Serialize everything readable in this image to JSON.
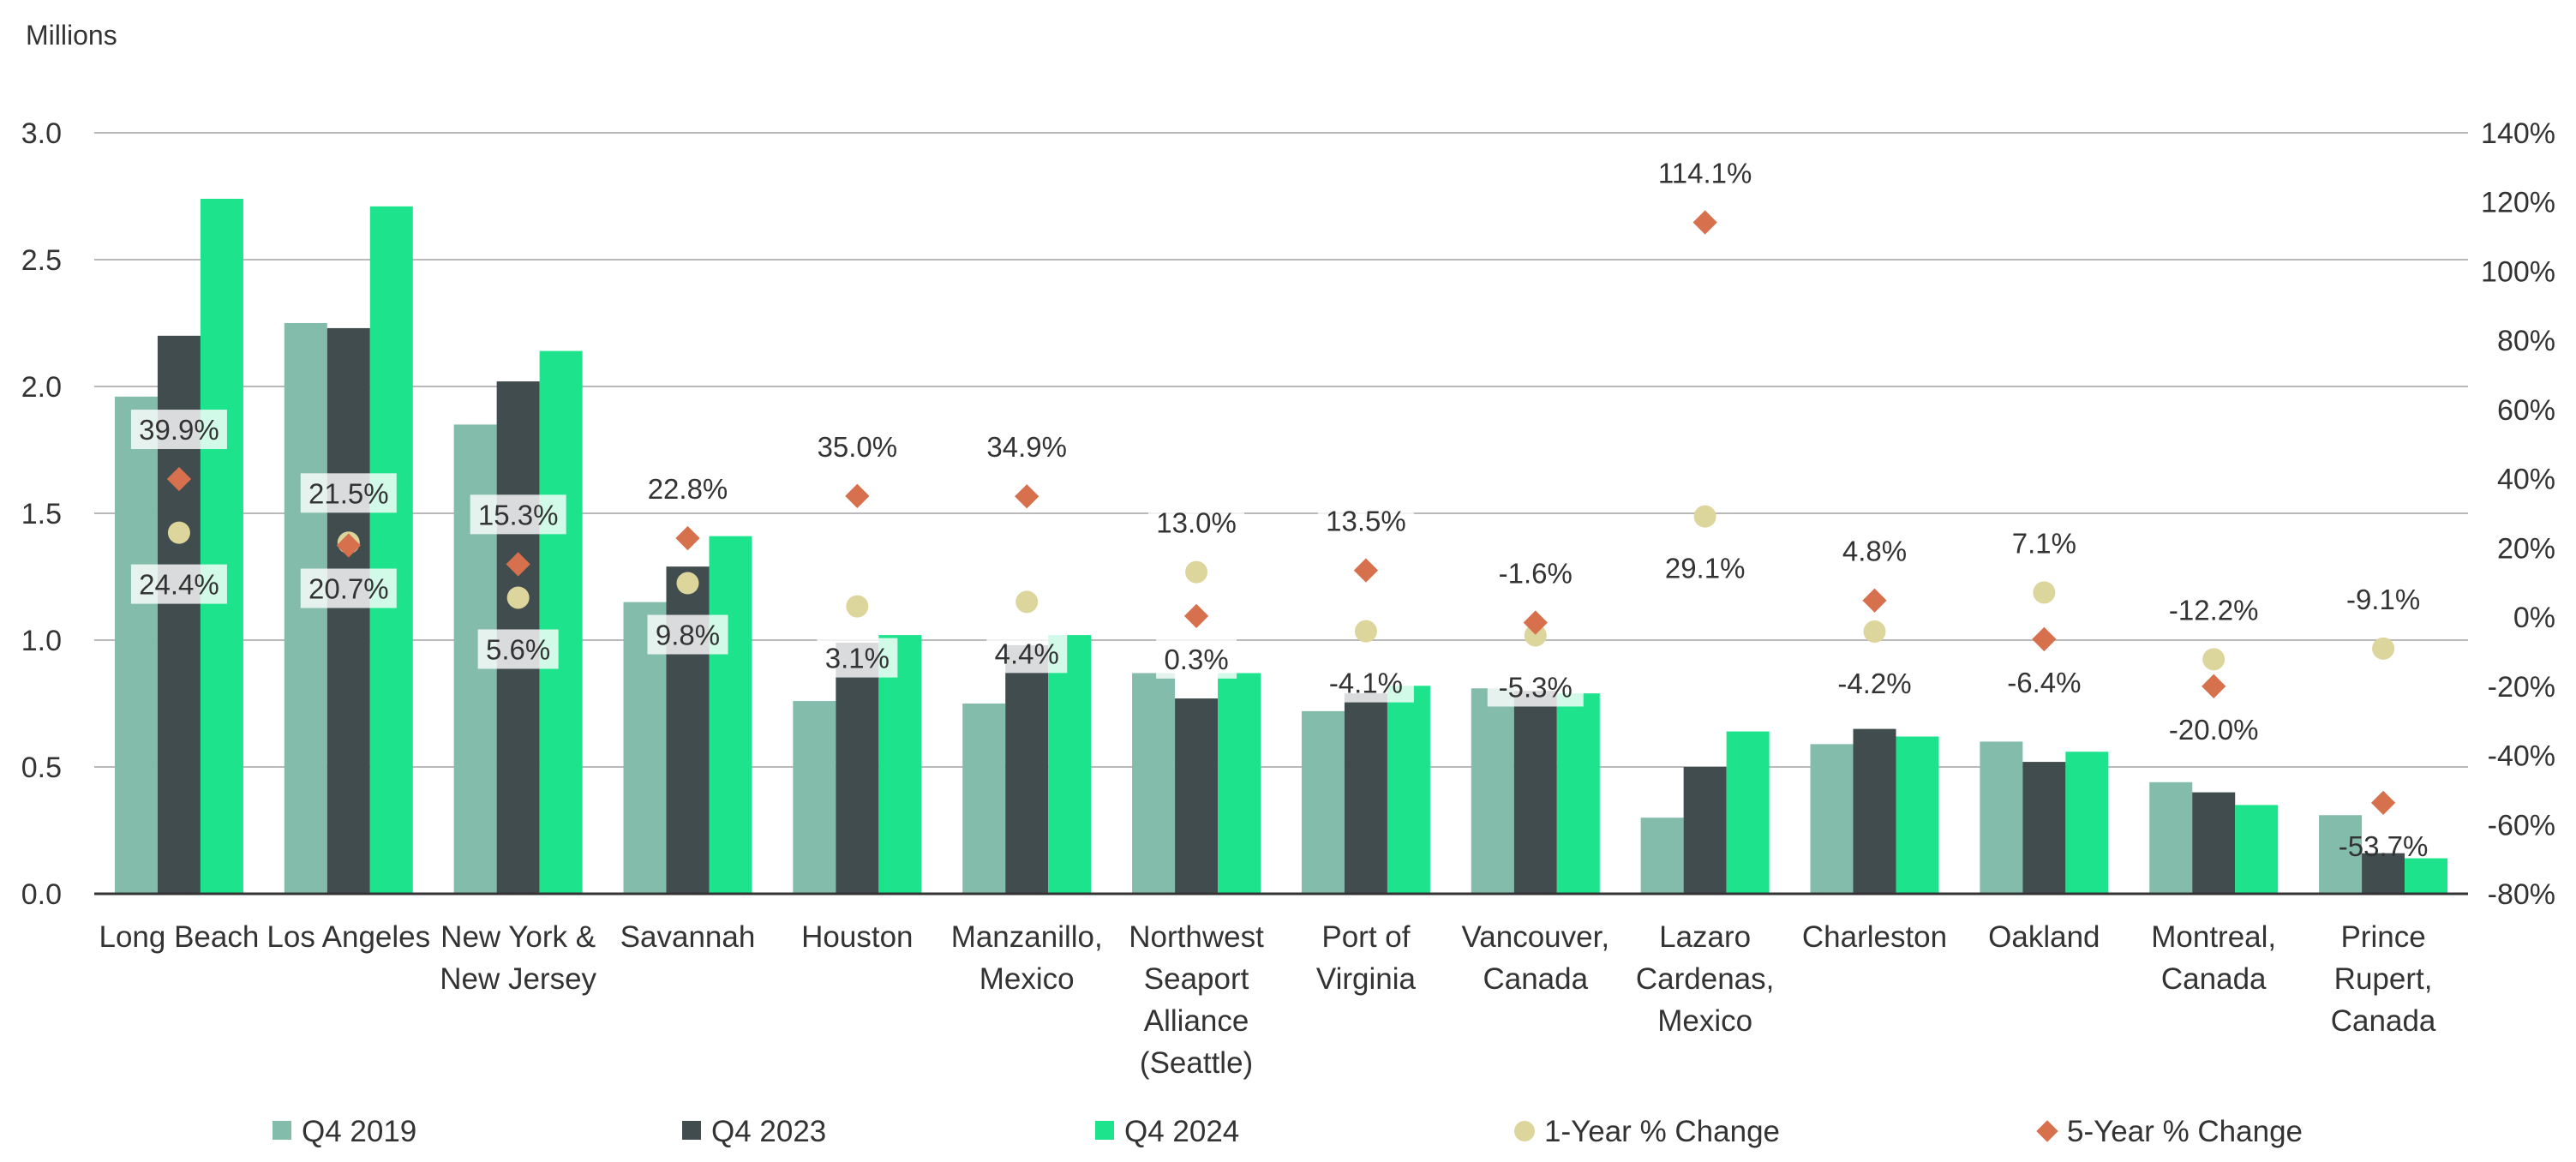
{
  "chart_data": {
    "type": "bar",
    "ylabel": "Millions",
    "ylim": [
      0,
      3
    ],
    "yticks": [
      "0.0",
      "0.5",
      "1.0",
      "1.5",
      "2.0",
      "2.5",
      "3.0"
    ],
    "y2lim": [
      -80,
      140
    ],
    "y2ticks": [
      "-80%",
      "-60%",
      "-40%",
      "-20%",
      "0%",
      "20%",
      "40%",
      "60%",
      "80%",
      "100%",
      "120%",
      "140%"
    ],
    "grid": true,
    "legend_position": "bottom",
    "categories": [
      [
        "Long Beach"
      ],
      [
        "Los Angeles"
      ],
      [
        "New York &",
        "New Jersey"
      ],
      [
        "Savannah"
      ],
      [
        "Houston"
      ],
      [
        "Manzanillo,",
        "Mexico"
      ],
      [
        "Northwest",
        "Seaport",
        "Alliance",
        "(Seattle)"
      ],
      [
        "Port of",
        "Virginia"
      ],
      [
        "Vancouver,",
        "Canada"
      ],
      [
        "Lazaro",
        "Cardenas,",
        "Mexico"
      ],
      [
        "Charleston"
      ],
      [
        "Oakland"
      ],
      [
        "Montreal,",
        "Canada"
      ],
      [
        "Prince",
        "Rupert,",
        "Canada"
      ]
    ],
    "series": [
      {
        "name": "Q4 2019",
        "type": "bar",
        "axis": "left",
        "color": "#84bcac",
        "values": [
          1.96,
          2.25,
          1.85,
          1.15,
          0.76,
          0.75,
          0.87,
          0.72,
          0.81,
          0.3,
          0.59,
          0.6,
          0.44,
          0.31
        ]
      },
      {
        "name": "Q4 2023",
        "type": "bar",
        "axis": "left",
        "color": "#414c4f",
        "values": [
          2.2,
          2.23,
          2.02,
          1.29,
          0.99,
          0.98,
          0.77,
          0.79,
          0.8,
          0.5,
          0.65,
          0.52,
          0.4,
          0.16
        ]
      },
      {
        "name": "Q4 2024",
        "type": "bar",
        "axis": "left",
        "color": "#1de48c",
        "values": [
          2.74,
          2.71,
          2.14,
          1.41,
          1.02,
          1.02,
          0.87,
          0.82,
          0.79,
          0.64,
          0.62,
          0.56,
          0.35,
          0.14
        ]
      },
      {
        "name": "1-Year % Change",
        "type": "scatter",
        "axis": "right",
        "color": "#dcd59c",
        "values": [
          24.4,
          21.5,
          5.6,
          9.8,
          3.1,
          4.4,
          13.0,
          -4.1,
          -5.3,
          29.1,
          -4.2,
          7.1,
          -12.2,
          -9.1
        ],
        "labels": [
          "24.4%",
          "21.5%",
          "5.6%",
          "9.8%",
          "3.1%",
          "4.4%",
          "13.0%",
          "-4.1%",
          "-5.3%",
          "29.1%",
          "-4.2%",
          "7.1%",
          "-12.2%",
          "-9.1%"
        ]
      },
      {
        "name": "5-Year % Change",
        "type": "scatter",
        "axis": "right",
        "color": "#d7714d",
        "values": [
          39.9,
          20.7,
          15.3,
          22.8,
          35.0,
          34.9,
          0.3,
          13.5,
          -1.6,
          114.1,
          4.8,
          -6.4,
          -20.0,
          -53.7
        ],
        "labels": [
          "39.9%",
          "20.7%",
          "15.3%",
          "22.8%",
          "35.0%",
          "34.9%",
          "0.3%",
          "13.5%",
          "-1.6%",
          "114.1%",
          "4.8%",
          "-6.4%",
          "-20.0%",
          "-53.7%"
        ]
      }
    ]
  }
}
